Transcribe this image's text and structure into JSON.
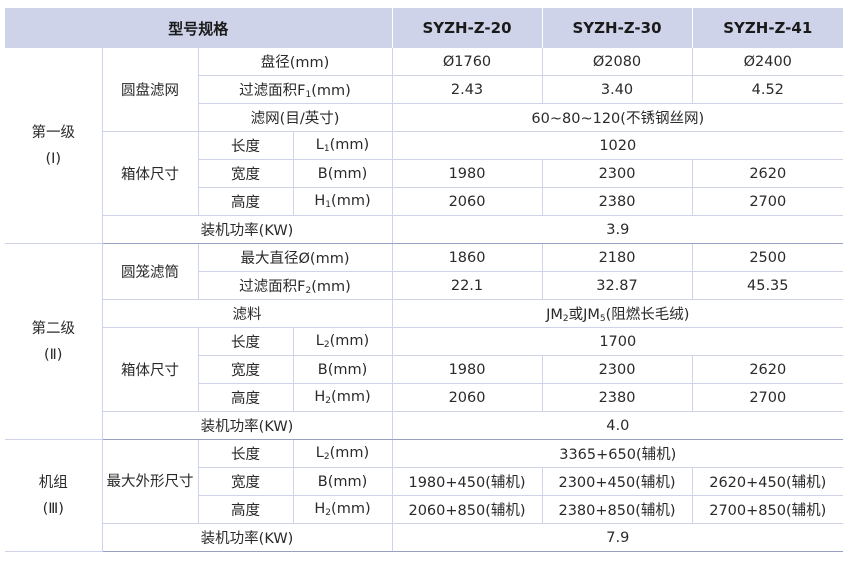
{
  "header": {
    "spec": "型号规格",
    "models": [
      "SYZH-Z-20",
      "SYZH-Z-30",
      "SYZH-Z-41"
    ]
  },
  "stage1": {
    "name": "第一级",
    "roman": "(Ⅰ)",
    "disc_filter": "圆盘滤网",
    "disc_diameter": {
      "label": "盘径(mm)",
      "values": [
        "Ø1760",
        "Ø2080",
        "Ø2400"
      ]
    },
    "filter_area": {
      "label_pre": "过滤面积F",
      "sub": "1",
      "label_post": "(mm)",
      "values": [
        "2.43",
        "3.40",
        "4.52"
      ]
    },
    "mesh": {
      "label": "滤网(目/英寸)",
      "value": "60~80~120(不锈钢丝网)"
    },
    "box": "箱体尺寸",
    "length": {
      "label": "长度",
      "sym": "L",
      "sub": "1",
      "unit": "(mm)",
      "value": "1020"
    },
    "width": {
      "label": "宽度",
      "sym": "B(mm)",
      "values": [
        "1980",
        "2300",
        "2620"
      ]
    },
    "height": {
      "label": "高度",
      "sym": "H",
      "sub": "1",
      "unit": "(mm)",
      "values": [
        "2060",
        "2380",
        "2700"
      ]
    },
    "power": {
      "label": "装机功率(KW)",
      "value": "3.9"
    }
  },
  "stage2": {
    "name": "第二级",
    "roman": "(Ⅱ)",
    "cage_filter": "圆笼滤筒",
    "max_diameter": {
      "label": "最大直径Ø(mm)",
      "values": [
        "1860",
        "2180",
        "2500"
      ]
    },
    "filter_area": {
      "label_pre": "过滤面积F",
      "sub": "2",
      "label_post": "(mm)",
      "values": [
        "22.1",
        "32.87",
        "45.35"
      ]
    },
    "media": {
      "label": "滤料",
      "pre": "JM",
      "sub1": "2",
      "mid": "或JM",
      "sub2": "5",
      "post": "(阻燃长毛绒)"
    },
    "box": "箱体尺寸",
    "length": {
      "label": "长度",
      "sym": "L",
      "sub": "2",
      "unit": "(mm)",
      "value": "1700"
    },
    "width": {
      "label": "宽度",
      "sym": "B(mm)",
      "values": [
        "1980",
        "2300",
        "2620"
      ]
    },
    "height": {
      "label": "高度",
      "sym": "H",
      "sub": "2",
      "unit": "(mm)",
      "values": [
        "2060",
        "2380",
        "2700"
      ]
    },
    "power": {
      "label": "装机功率(KW)",
      "value": "4.0"
    }
  },
  "unit": {
    "name": "机组",
    "roman": "(Ⅲ)",
    "outline": "最大外形尺寸",
    "length": {
      "label": "长度",
      "sym": "L",
      "sub": "2",
      "unit": "(mm)",
      "value": "3365+650(辅机)"
    },
    "width": {
      "label": "宽度",
      "sym": "B(mm)",
      "values": [
        "1980+450(辅机)",
        "2300+450(辅机)",
        "2620+450(辅机)"
      ]
    },
    "height": {
      "label": "高度",
      "sym": "H",
      "sub": "2",
      "unit": "(mm)",
      "values": [
        "2060+850(辅机)",
        "2380+850(辅机)",
        "2700+850(辅机)"
      ]
    },
    "power": {
      "label": "装机功率(KW)",
      "value": "7.9"
    }
  }
}
